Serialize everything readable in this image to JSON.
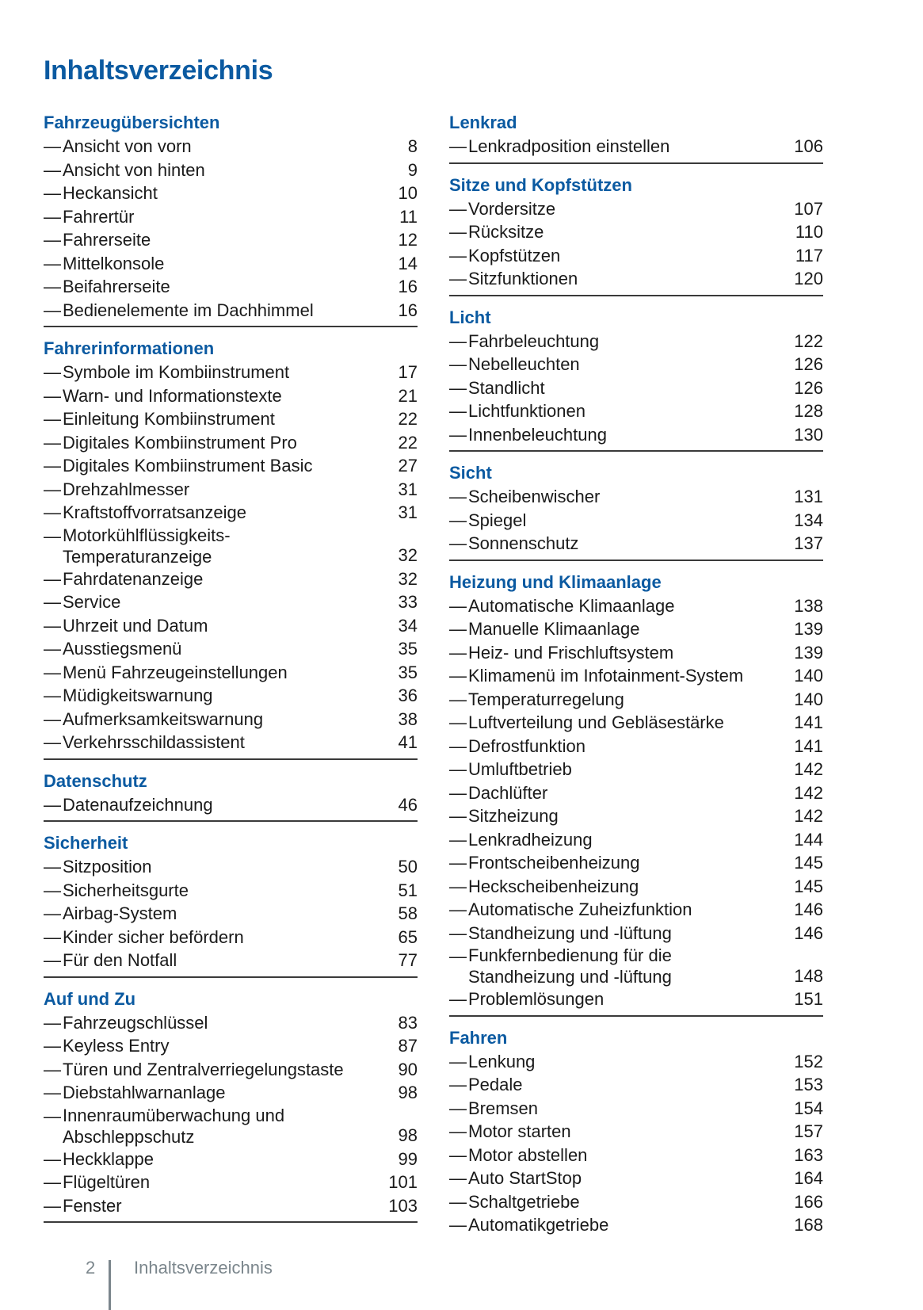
{
  "title": "Inhaltsverzeichnis",
  "colors": {
    "heading": "#0b5aa1",
    "text": "#1a1a1a",
    "footer": "#7b868c"
  },
  "left": [
    {
      "heading": "Fahrzeugübersichten",
      "rule": true,
      "items": [
        {
          "lines": [
            "Ansicht von vorn"
          ],
          "page": "8"
        },
        {
          "lines": [
            "Ansicht von hinten"
          ],
          "page": "9"
        },
        {
          "lines": [
            "Heckansicht"
          ],
          "page": "10"
        },
        {
          "lines": [
            "Fahrertür"
          ],
          "page": "11"
        },
        {
          "lines": [
            "Fahrerseite"
          ],
          "page": "12"
        },
        {
          "lines": [
            "Mittelkonsole"
          ],
          "page": "14"
        },
        {
          "lines": [
            "Beifahrerseite"
          ],
          "page": "16"
        },
        {
          "lines": [
            "Bedienelemente im Dachhimmel"
          ],
          "page": "16"
        }
      ]
    },
    {
      "heading": "Fahrerinformationen",
      "rule": true,
      "items": [
        {
          "lines": [
            "Symbole im Kombiinstrument"
          ],
          "page": "17"
        },
        {
          "lines": [
            "Warn- und Informationstexte"
          ],
          "page": "21"
        },
        {
          "lines": [
            "Einleitung Kombiinstrument"
          ],
          "page": "22"
        },
        {
          "lines": [
            "Digitales Kombiinstrument Pro"
          ],
          "page": "22"
        },
        {
          "lines": [
            "Digitales Kombiinstrument Basic"
          ],
          "page": "27"
        },
        {
          "lines": [
            "Drehzahlmesser"
          ],
          "page": "31"
        },
        {
          "lines": [
            "Kraftstoffvorratsanzeige"
          ],
          "page": "31"
        },
        {
          "lines": [
            "Motorkühlflüssigkeits-",
            "Temperaturanzeige"
          ],
          "page": "32"
        },
        {
          "lines": [
            "Fahrdatenanzeige"
          ],
          "page": "32"
        },
        {
          "lines": [
            "Service"
          ],
          "page": "33"
        },
        {
          "lines": [
            "Uhrzeit und Datum"
          ],
          "page": "34"
        },
        {
          "lines": [
            "Ausstiegsmenü"
          ],
          "page": "35"
        },
        {
          "lines": [
            "Menü Fahrzeugeinstellungen"
          ],
          "page": "35"
        },
        {
          "lines": [
            "Müdigkeitswarnung"
          ],
          "page": "36"
        },
        {
          "lines": [
            "Aufmerksamkeitswarnung"
          ],
          "page": "38"
        },
        {
          "lines": [
            "Verkehrsschildassistent"
          ],
          "page": "41"
        }
      ]
    },
    {
      "heading": "Datenschutz",
      "rule": true,
      "items": [
        {
          "lines": [
            "Datenaufzeichnung"
          ],
          "page": "46"
        }
      ]
    },
    {
      "heading": "Sicherheit",
      "rule": true,
      "items": [
        {
          "lines": [
            "Sitzposition"
          ],
          "page": "50"
        },
        {
          "lines": [
            "Sicherheitsgurte"
          ],
          "page": "51"
        },
        {
          "lines": [
            "Airbag-System"
          ],
          "page": "58"
        },
        {
          "lines": [
            "Kinder sicher befördern"
          ],
          "page": "65"
        },
        {
          "lines": [
            "Für den Notfall"
          ],
          "page": "77"
        }
      ]
    },
    {
      "heading": "Auf und Zu",
      "rule": true,
      "items": [
        {
          "lines": [
            "Fahrzeugschlüssel"
          ],
          "page": "83"
        },
        {
          "lines": [
            "Keyless Entry"
          ],
          "page": "87"
        },
        {
          "lines": [
            "Türen und Zentralverriegelungstaste"
          ],
          "page": "90"
        },
        {
          "lines": [
            "Diebstahlwarnanlage"
          ],
          "page": "98"
        },
        {
          "lines": [
            "Innenraumüberwachung und",
            "Abschleppschutz"
          ],
          "page": "98"
        },
        {
          "lines": [
            "Heckklappe"
          ],
          "page": "99"
        },
        {
          "lines": [
            "Flügeltüren"
          ],
          "page": "101"
        },
        {
          "lines": [
            "Fenster"
          ],
          "page": "103"
        }
      ]
    }
  ],
  "right": [
    {
      "heading": "Lenkrad",
      "rule": true,
      "items": [
        {
          "lines": [
            "Lenkradposition einstellen"
          ],
          "page": "106"
        }
      ]
    },
    {
      "heading": "Sitze und Kopfstützen",
      "rule": true,
      "items": [
        {
          "lines": [
            "Vordersitze"
          ],
          "page": "107"
        },
        {
          "lines": [
            "Rücksitze"
          ],
          "page": "110"
        },
        {
          "lines": [
            "Kopfstützen"
          ],
          "page": "117"
        },
        {
          "lines": [
            "Sitzfunktionen"
          ],
          "page": "120"
        }
      ]
    },
    {
      "heading": "Licht",
      "rule": true,
      "items": [
        {
          "lines": [
            "Fahrbeleuchtung"
          ],
          "page": "122"
        },
        {
          "lines": [
            "Nebelleuchten"
          ],
          "page": "126"
        },
        {
          "lines": [
            "Standlicht"
          ],
          "page": "126"
        },
        {
          "lines": [
            "Lichtfunktionen"
          ],
          "page": "128"
        },
        {
          "lines": [
            "Innenbeleuchtung"
          ],
          "page": "130"
        }
      ]
    },
    {
      "heading": "Sicht",
      "rule": true,
      "items": [
        {
          "lines": [
            "Scheibenwischer"
          ],
          "page": "131"
        },
        {
          "lines": [
            "Spiegel"
          ],
          "page": "134"
        },
        {
          "lines": [
            "Sonnenschutz"
          ],
          "page": "137"
        }
      ]
    },
    {
      "heading": "Heizung und Klimaanlage",
      "rule": true,
      "items": [
        {
          "lines": [
            "Automatische Klimaanlage"
          ],
          "page": "138"
        },
        {
          "lines": [
            "Manuelle Klimaanlage"
          ],
          "page": "139"
        },
        {
          "lines": [
            "Heiz- und Frischluftsystem"
          ],
          "page": "139"
        },
        {
          "lines": [
            "Klimamenü im Infotainment-System"
          ],
          "page": "140"
        },
        {
          "lines": [
            "Temperaturregelung"
          ],
          "page": "140"
        },
        {
          "lines": [
            "Luftverteilung und Gebläsestärke"
          ],
          "page": "141"
        },
        {
          "lines": [
            "Defrostfunktion"
          ],
          "page": "141"
        },
        {
          "lines": [
            "Umluftbetrieb"
          ],
          "page": "142"
        },
        {
          "lines": [
            "Dachlüfter"
          ],
          "page": "142"
        },
        {
          "lines": [
            "Sitzheizung"
          ],
          "page": "142"
        },
        {
          "lines": [
            "Lenkradheizung"
          ],
          "page": "144"
        },
        {
          "lines": [
            "Frontscheibenheizung"
          ],
          "page": "145"
        },
        {
          "lines": [
            "Heckscheibenheizung"
          ],
          "page": "145"
        },
        {
          "lines": [
            "Automatische Zuheizfunktion"
          ],
          "page": "146"
        },
        {
          "lines": [
            "Standheizung und -lüftung"
          ],
          "page": "146"
        },
        {
          "lines": [
            "Funkfernbedienung für die",
            "Standheizung und -lüftung"
          ],
          "page": "148"
        },
        {
          "lines": [
            "Problemlösungen"
          ],
          "page": "151"
        }
      ]
    },
    {
      "heading": "Fahren",
      "rule": false,
      "items": [
        {
          "lines": [
            "Lenkung"
          ],
          "page": "152"
        },
        {
          "lines": [
            "Pedale"
          ],
          "page": "153"
        },
        {
          "lines": [
            "Bremsen"
          ],
          "page": "154"
        },
        {
          "lines": [
            "Motor starten"
          ],
          "page": "157"
        },
        {
          "lines": [
            "Motor abstellen"
          ],
          "page": "163"
        },
        {
          "lines": [
            "Auto StartStop"
          ],
          "page": "164"
        },
        {
          "lines": [
            "Schaltgetriebe"
          ],
          "page": "166"
        },
        {
          "lines": [
            "Automatikgetriebe"
          ],
          "page": "168"
        }
      ]
    }
  ],
  "dash": "—",
  "footer": {
    "page_number": "2",
    "section": "Inhaltsverzeichnis"
  }
}
